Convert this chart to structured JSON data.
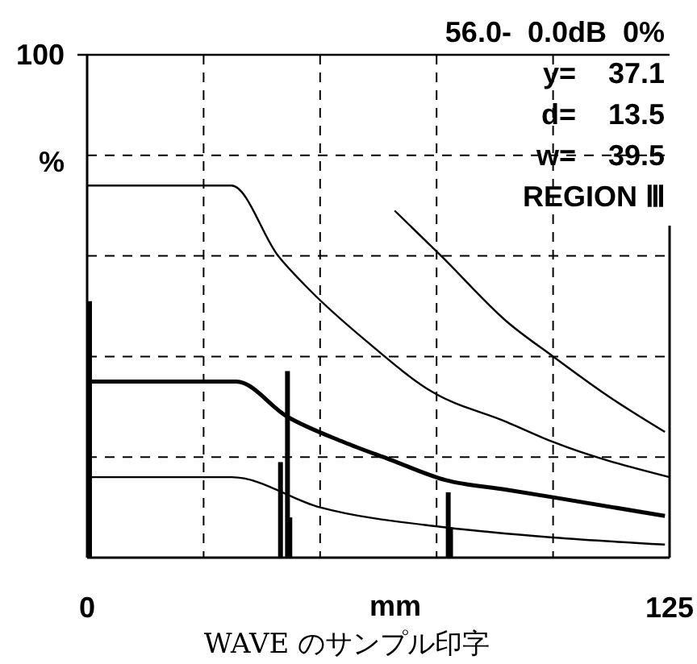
{
  "chart_data": {
    "type": "line",
    "xlabel": "mm",
    "ylabel": "%",
    "xlim": [
      0,
      125
    ],
    "xticks": [
      0,
      125
    ],
    "ylim": [
      0,
      100
    ],
    "yticks": [
      {
        "value": 20,
        "label": null
      },
      {
        "value": 40,
        "label": null
      },
      {
        "value": 60,
        "label": null
      },
      {
        "value": 80,
        "label": null
      },
      100
    ],
    "grid": true,
    "marker": "none",
    "line_style": "solid",
    "series": [
      {
        "color": "#000000",
        "x": [
          0,
          31,
          41,
          48,
          60,
          74,
          90,
          100,
          125
        ],
        "values": [
          74,
          74,
          60,
          53,
          43,
          33,
          27,
          23,
          16
        ]
      },
      {
        "color": "#000000",
        "x": [
          66,
          76,
          90,
          100,
          112,
          124
        ],
        "values": [
          69,
          60,
          47,
          40,
          32,
          25
        ]
      },
      {
        "color": "#000000",
        "x": [
          0,
          32,
          43,
          55,
          65,
          77,
          90,
          100,
          124
        ],
        "values": [
          35,
          35,
          28,
          23,
          19.5,
          15.4,
          13.5,
          12,
          8.3
        ]
      },
      {
        "color": "#000000",
        "x": [
          0,
          31,
          50,
          77,
          100,
          124
        ],
        "values": [
          16,
          16,
          10,
          6,
          4,
          2.6
        ]
      },
      {
        "type": "bar",
        "color": "#000000",
        "x": [
          0,
          41.5,
          43,
          43.5,
          77.5,
          78
        ],
        "values": [
          51,
          19,
          37.1,
          8,
          13,
          6
        ]
      }
    ],
    "annotations": [
      "56.0-  0.0dB  0%",
      "y=    37.1",
      "d=    13.5",
      "w=    39.5",
      "REGION Ⅲ",
      "WAVE のサンプル印字"
    ]
  }
}
